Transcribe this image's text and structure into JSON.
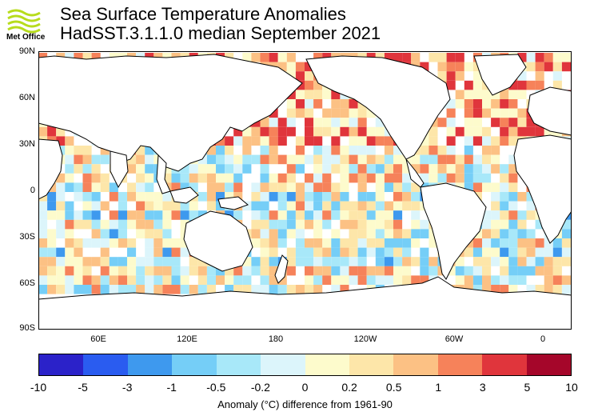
{
  "logo": {
    "text": "Met Office",
    "icon": "met-office-wave-icon",
    "color": "#b7dc1c"
  },
  "title": {
    "line1": "Sea Surface Temperature Anomalies",
    "line2": "HadSST.3.1.1.0 median September 2021"
  },
  "map": {
    "lat_labels": [
      "90N",
      "60N",
      "30N",
      "0",
      "30S",
      "60S",
      "90S"
    ],
    "lon_labels": [
      "60E",
      "120E",
      "180",
      "120W",
      "60W",
      "0"
    ],
    "land_color": "#ffffff",
    "projection": "equirectangular, centered near 150E"
  },
  "colorbar": {
    "ticks": [
      "-10",
      "-5",
      "-3",
      "-1",
      "-0.5",
      "-0.2",
      "0",
      "0.2",
      "0.5",
      "1",
      "3",
      "5",
      "10"
    ],
    "colors": [
      "#2b22c9",
      "#2a5cf0",
      "#3e99ee",
      "#75cef7",
      "#a8e8f9",
      "#dcf5fb",
      "#fdfbcc",
      "#fde6a9",
      "#fcc184",
      "#f6825a",
      "#e0353c",
      "#a5062a"
    ],
    "label": "Anomaly (°C) difference from 1961-90"
  }
}
